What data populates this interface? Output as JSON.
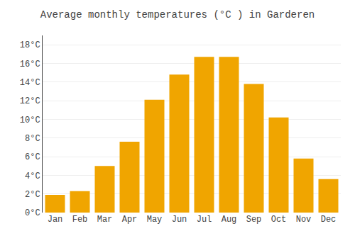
{
  "chart_data": {
    "type": "bar",
    "title": "Average monthly temperatures (°C ) in Garderen",
    "categories": [
      "Jan",
      "Feb",
      "Mar",
      "Apr",
      "May",
      "Jun",
      "Jul",
      "Aug",
      "Sep",
      "Oct",
      "Nov",
      "Dec"
    ],
    "values": [
      1.9,
      2.3,
      5.0,
      7.6,
      12.1,
      14.8,
      16.7,
      16.7,
      13.8,
      10.2,
      5.8,
      3.6
    ],
    "color": "#F0A500",
    "ylim": [
      0,
      19
    ],
    "yticks": [
      {
        "value": 0,
        "label": "0°C"
      },
      {
        "value": 2,
        "label": "2°C"
      },
      {
        "value": 4,
        "label": "4°C"
      },
      {
        "value": 6,
        "label": "6°C"
      },
      {
        "value": 8,
        "label": "8°C"
      },
      {
        "value": 10,
        "label": "10°C"
      },
      {
        "value": 12,
        "label": "12°C"
      },
      {
        "value": 14,
        "label": "14°C"
      },
      {
        "value": 16,
        "label": "16°C"
      },
      {
        "value": 18,
        "label": "18°C"
      }
    ],
    "grid": true
  }
}
